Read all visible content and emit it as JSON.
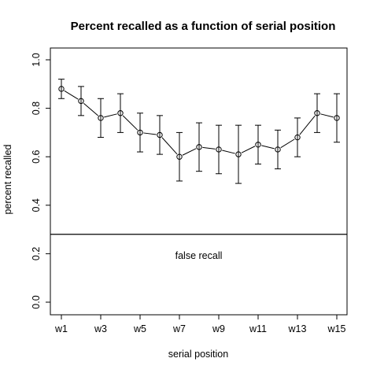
{
  "chart_data": {
    "type": "line",
    "title": "Percent recalled as a function of serial position",
    "xlabel": "serial position",
    "ylabel": "percent recalled",
    "x_positions": [
      1,
      2,
      3,
      4,
      5,
      6,
      7,
      8,
      9,
      10,
      11,
      12,
      13,
      14,
      15
    ],
    "x_tick_positions": [
      1,
      3,
      5,
      7,
      9,
      11,
      13,
      15
    ],
    "x_tick_labels": [
      "w1",
      "w3",
      "w5",
      "w7",
      "w9",
      "w11",
      "w13",
      "w15"
    ],
    "y_ticks": [
      0.0,
      0.2,
      0.4,
      0.6,
      0.8,
      1.0
    ],
    "y_tick_labels": [
      "0.0",
      "0.2",
      "0.4",
      "0.6",
      "0.8",
      "1.0"
    ],
    "ylim": [
      0,
      1.0
    ],
    "xlim": [
      1,
      15
    ],
    "series": [
      {
        "values": [
          0.88,
          0.83,
          0.76,
          0.78,
          0.7,
          0.69,
          0.6,
          0.64,
          0.63,
          0.61,
          0.65,
          0.63,
          0.68,
          0.78,
          0.76
        ],
        "err_low": [
          0.84,
          0.77,
          0.68,
          0.7,
          0.62,
          0.61,
          0.5,
          0.54,
          0.53,
          0.49,
          0.57,
          0.55,
          0.6,
          0.7,
          0.66
        ],
        "err_high": [
          0.92,
          0.89,
          0.84,
          0.86,
          0.78,
          0.77,
          0.7,
          0.74,
          0.73,
          0.73,
          0.73,
          0.71,
          0.76,
          0.86,
          0.86
        ]
      }
    ],
    "reference_line": {
      "y": 0.28,
      "label": "false recall"
    },
    "grid": false,
    "legend": "none"
  }
}
